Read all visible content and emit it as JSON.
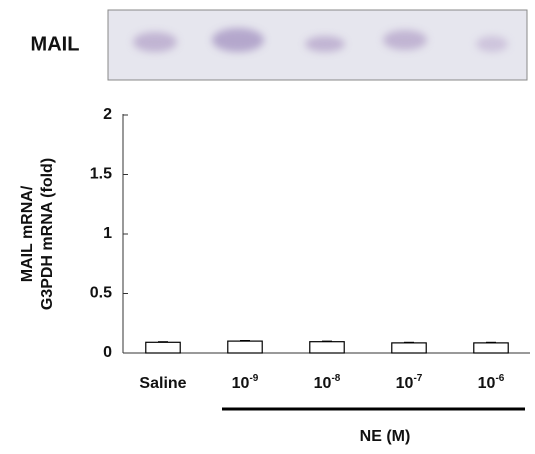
{
  "chart_data": {
    "type": "bar",
    "blot_label": "MAIL",
    "ylabel": [
      "MAIL mRNA/",
      "G3PDH mRNA (fold)"
    ],
    "categories": [
      "Saline",
      "10",
      "10",
      "10",
      "10"
    ],
    "category_exponents": [
      null,
      "-9",
      "-8",
      "-7",
      "-6"
    ],
    "values": [
      0.09,
      0.1,
      0.095,
      0.085,
      0.085
    ],
    "errors": [
      0.005,
      0.005,
      0.005,
      0.005,
      0.005
    ],
    "color": "#ffffff",
    "group_label": "NE (M)",
    "ylim": [
      0,
      2
    ],
    "yticks": [
      0,
      0.5,
      1,
      1.5,
      2
    ],
    "grid": false
  }
}
